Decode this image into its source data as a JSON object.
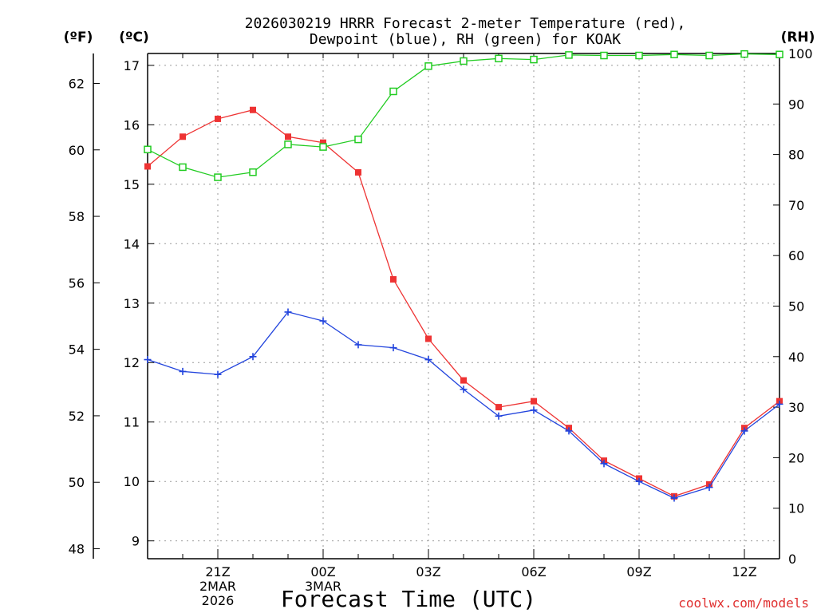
{
  "chart_data": {
    "type": "line",
    "title_line1": "2026030219 HRRR Forecast 2-meter Temperature (red),",
    "title_line2": "Dewpoint (blue), RH (green) for KOAK",
    "xlabel": "Forecast Time (UTC)",
    "watermark": "coolwx.com/models",
    "left_outer_axis": {
      "unit_label": "(ºF)",
      "ylim": [
        47.7,
        62.9
      ],
      "ticks": [
        48,
        50,
        52,
        54,
        56,
        58,
        60,
        62
      ]
    },
    "left_axis": {
      "unit_label": "(ºC)",
      "ylim": [
        8.7,
        17.2
      ],
      "ticks": [
        9,
        10,
        11,
        12,
        13,
        14,
        15,
        16,
        17
      ]
    },
    "right_axis": {
      "unit_label": "(RH)",
      "ylim": [
        0,
        100
      ],
      "ticks": [
        0,
        10,
        20,
        30,
        40,
        50,
        60,
        70,
        80,
        90,
        100
      ]
    },
    "x_hours": [
      19,
      20,
      21,
      22,
      23,
      24,
      25,
      26,
      27,
      28,
      29,
      30,
      31,
      32,
      33,
      34,
      35,
      36,
      37
    ],
    "x_range": [
      19,
      37
    ],
    "x_ticks": [
      {
        "hour": 21,
        "lines": [
          "21Z",
          "2MAR",
          "2026"
        ]
      },
      {
        "hour": 24,
        "lines": [
          "00Z",
          "3MAR"
        ]
      },
      {
        "hour": 27,
        "lines": [
          "03Z"
        ]
      },
      {
        "hour": 30,
        "lines": [
          "06Z"
        ]
      },
      {
        "hour": 33,
        "lines": [
          "09Z"
        ]
      },
      {
        "hour": 36,
        "lines": [
          "12Z"
        ]
      }
    ],
    "series": [
      {
        "name": "Temperature (red)",
        "axis": "C",
        "color": "#ee3333",
        "marker": "filled-square",
        "values": [
          15.3,
          15.8,
          16.1,
          16.25,
          15.8,
          15.7,
          15.2,
          13.4,
          12.4,
          11.7,
          11.25,
          11.35,
          10.9,
          10.35,
          10.05,
          9.75,
          9.95,
          10.9,
          11.35
        ]
      },
      {
        "name": "Dewpoint (blue)",
        "axis": "C",
        "color": "#2244dd",
        "marker": "plus",
        "values": [
          12.05,
          11.85,
          11.8,
          12.1,
          12.85,
          12.7,
          12.3,
          12.25,
          12.05,
          11.55,
          11.1,
          11.2,
          10.85,
          10.3,
          10.0,
          9.72,
          9.9,
          10.85,
          11.3
        ]
      },
      {
        "name": "RH (green)",
        "axis": "RH",
        "color": "#22cc22",
        "marker": "open-square",
        "values": [
          81,
          77.5,
          75.5,
          76.5,
          82,
          81.5,
          83,
          92.5,
          97.5,
          98.5,
          99,
          98.8,
          99.7,
          99.6,
          99.6,
          99.8,
          99.6,
          99.9,
          99.8
        ]
      }
    ]
  }
}
